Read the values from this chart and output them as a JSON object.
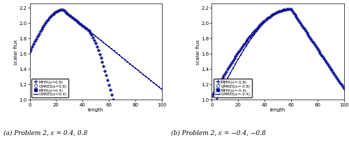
{
  "color_dark": "#00008B",
  "legend_labels_a": [
    "MFPA(ε=0.8)",
    "GMRES(ε=0.8)",
    "MFPA(ε=0.4)",
    "GMRES(ε=0.4)"
  ],
  "legend_labels_b": [
    "MFPA(ε=-0.8)",
    "GMRES(ε=-0.8)",
    "MFPA(ε=-0.4)",
    "GMRES(ε=-0.4)"
  ],
  "xlabel": "length",
  "ylabel": "scalar flux",
  "caption_a": "(a) Problem 2, ε = 0.4, 0.8",
  "caption_b": "(b) Problem 2, ε = −0.4, −0.8",
  "ylim_a": [
    1.0,
    2.25
  ],
  "ylim_b": [
    1.0,
    2.25
  ],
  "xlim": [
    0,
    100
  ],
  "yticks": [
    1.0,
    1.2,
    1.4,
    1.6,
    1.8,
    2.0,
    2.2
  ],
  "xticks": [
    0,
    20,
    40,
    60,
    80,
    100
  ]
}
